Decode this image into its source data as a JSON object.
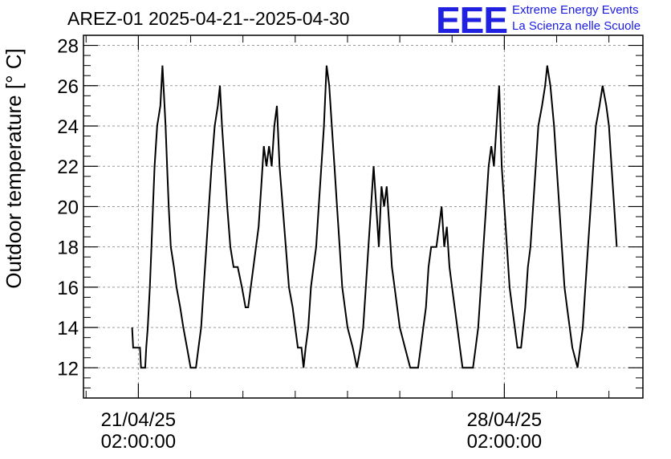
{
  "chart_data": {
    "type": "line",
    "title": "AREZ-01 2025-04-21--2025-04-30",
    "ylabel": "Outdoor temperature [° C]",
    "xlabel": "",
    "ylim": [
      10.5,
      28.5
    ],
    "y_ticks": [
      12,
      14,
      16,
      18,
      20,
      22,
      24,
      26,
      28
    ],
    "x_unit": "days since 2025-04-21 02:00:00",
    "xlim": [
      -1.05,
      9.65
    ],
    "x_ticks": [
      {
        "x": 0,
        "date": "21/04/25",
        "time": "02:00:00"
      },
      {
        "x": 7,
        "date": "28/04/25",
        "time": "02:00:00"
      }
    ],
    "grid": true,
    "series": [
      {
        "name": "",
        "color": "#000000",
        "points": [
          [
            -0.12,
            14
          ],
          [
            -0.1,
            13
          ],
          [
            0.03,
            13
          ],
          [
            0.05,
            12
          ],
          [
            0.13,
            12
          ],
          [
            0.15,
            13
          ],
          [
            0.18,
            14
          ],
          [
            0.22,
            16
          ],
          [
            0.25,
            18
          ],
          [
            0.28,
            20
          ],
          [
            0.31,
            22
          ],
          [
            0.36,
            24
          ],
          [
            0.42,
            25
          ],
          [
            0.46,
            27
          ],
          [
            0.48,
            26
          ],
          [
            0.52,
            24
          ],
          [
            0.55,
            22
          ],
          [
            0.58,
            20
          ],
          [
            0.62,
            18
          ],
          [
            0.68,
            17
          ],
          [
            0.73,
            16
          ],
          [
            0.8,
            15
          ],
          [
            0.86,
            14
          ],
          [
            0.93,
            13
          ],
          [
            1.0,
            12
          ],
          [
            1.1,
            12
          ],
          [
            1.15,
            13
          ],
          [
            1.2,
            14
          ],
          [
            1.25,
            16
          ],
          [
            1.3,
            18
          ],
          [
            1.35,
            20
          ],
          [
            1.4,
            22
          ],
          [
            1.46,
            24
          ],
          [
            1.52,
            25
          ],
          [
            1.56,
            26
          ],
          [
            1.6,
            24
          ],
          [
            1.65,
            22
          ],
          [
            1.7,
            20
          ],
          [
            1.76,
            18
          ],
          [
            1.82,
            17
          ],
          [
            1.9,
            17
          ],
          [
            1.98,
            16
          ],
          [
            2.05,
            15
          ],
          [
            2.1,
            15
          ],
          [
            2.3,
            19
          ],
          [
            2.35,
            21
          ],
          [
            2.4,
            23
          ],
          [
            2.45,
            22
          ],
          [
            2.5,
            23
          ],
          [
            2.55,
            22
          ],
          [
            2.6,
            24
          ],
          [
            2.65,
            25
          ],
          [
            2.7,
            22
          ],
          [
            2.76,
            20
          ],
          [
            2.82,
            18
          ],
          [
            2.88,
            16
          ],
          [
            2.95,
            15
          ],
          [
            3.0,
            14
          ],
          [
            3.05,
            13
          ],
          [
            3.12,
            13
          ],
          [
            3.16,
            12
          ],
          [
            3.2,
            13
          ],
          [
            3.25,
            14
          ],
          [
            3.3,
            16
          ],
          [
            3.35,
            17
          ],
          [
            3.4,
            18
          ],
          [
            3.45,
            20
          ],
          [
            3.5,
            22
          ],
          [
            3.55,
            24
          ],
          [
            3.6,
            27
          ],
          [
            3.65,
            26
          ],
          [
            3.7,
            24
          ],
          [
            3.75,
            22
          ],
          [
            3.8,
            20
          ],
          [
            3.85,
            18
          ],
          [
            3.9,
            16
          ],
          [
            3.95,
            15
          ],
          [
            4.0,
            14
          ],
          [
            4.1,
            13
          ],
          [
            4.18,
            12
          ],
          [
            4.25,
            13
          ],
          [
            4.3,
            14
          ],
          [
            4.35,
            16
          ],
          [
            4.4,
            18
          ],
          [
            4.45,
            20
          ],
          [
            4.5,
            22
          ],
          [
            4.55,
            20
          ],
          [
            4.6,
            18
          ],
          [
            4.65,
            21
          ],
          [
            4.7,
            20
          ],
          [
            4.75,
            21
          ],
          [
            4.8,
            19
          ],
          [
            4.85,
            17
          ],
          [
            4.9,
            16
          ],
          [
            5.0,
            14
          ],
          [
            5.1,
            13
          ],
          [
            5.2,
            12
          ],
          [
            5.35,
            12
          ],
          [
            5.4,
            13
          ],
          [
            5.45,
            14
          ],
          [
            5.5,
            15
          ],
          [
            5.55,
            17
          ],
          [
            5.6,
            18
          ],
          [
            5.7,
            18
          ],
          [
            5.75,
            19
          ],
          [
            5.8,
            20
          ],
          [
            5.85,
            18
          ],
          [
            5.9,
            19
          ],
          [
            5.95,
            17
          ],
          [
            6.0,
            16
          ],
          [
            6.05,
            15
          ],
          [
            6.1,
            14
          ],
          [
            6.15,
            13
          ],
          [
            6.2,
            12
          ],
          [
            6.4,
            12
          ],
          [
            6.45,
            13
          ],
          [
            6.5,
            14
          ],
          [
            6.55,
            16
          ],
          [
            6.6,
            18
          ],
          [
            6.65,
            20
          ],
          [
            6.7,
            22
          ],
          [
            6.75,
            23
          ],
          [
            6.8,
            22
          ],
          [
            6.85,
            24
          ],
          [
            6.9,
            26
          ],
          [
            6.95,
            22
          ],
          [
            7.0,
            20
          ],
          [
            7.05,
            18
          ],
          [
            7.1,
            16
          ],
          [
            7.15,
            15
          ],
          [
            7.2,
            14
          ],
          [
            7.25,
            13
          ],
          [
            7.32,
            13
          ],
          [
            7.36,
            14
          ],
          [
            7.4,
            15
          ],
          [
            7.45,
            17
          ],
          [
            7.5,
            18
          ],
          [
            7.55,
            20
          ],
          [
            7.6,
            22
          ],
          [
            7.65,
            24
          ],
          [
            7.72,
            25
          ],
          [
            7.78,
            26
          ],
          [
            7.82,
            27
          ],
          [
            7.88,
            26
          ],
          [
            7.95,
            24
          ],
          [
            8.0,
            22
          ],
          [
            8.05,
            20
          ],
          [
            8.1,
            18
          ],
          [
            8.15,
            16
          ],
          [
            8.2,
            15
          ],
          [
            8.25,
            14
          ],
          [
            8.3,
            13
          ],
          [
            8.4,
            12
          ],
          [
            8.45,
            13
          ],
          [
            8.5,
            14
          ],
          [
            8.55,
            16
          ],
          [
            8.6,
            18
          ],
          [
            8.65,
            20
          ],
          [
            8.7,
            22
          ],
          [
            8.75,
            24
          ],
          [
            8.82,
            25
          ],
          [
            8.88,
            26
          ],
          [
            8.95,
            25
          ],
          [
            9.0,
            24
          ],
          [
            9.05,
            22
          ],
          [
            9.1,
            20
          ],
          [
            9.15,
            18
          ]
        ]
      }
    ]
  },
  "logo": {
    "mark": "EEE",
    "line1": "Extreme Energy Events",
    "line2": "La Scienza nelle Scuole"
  }
}
